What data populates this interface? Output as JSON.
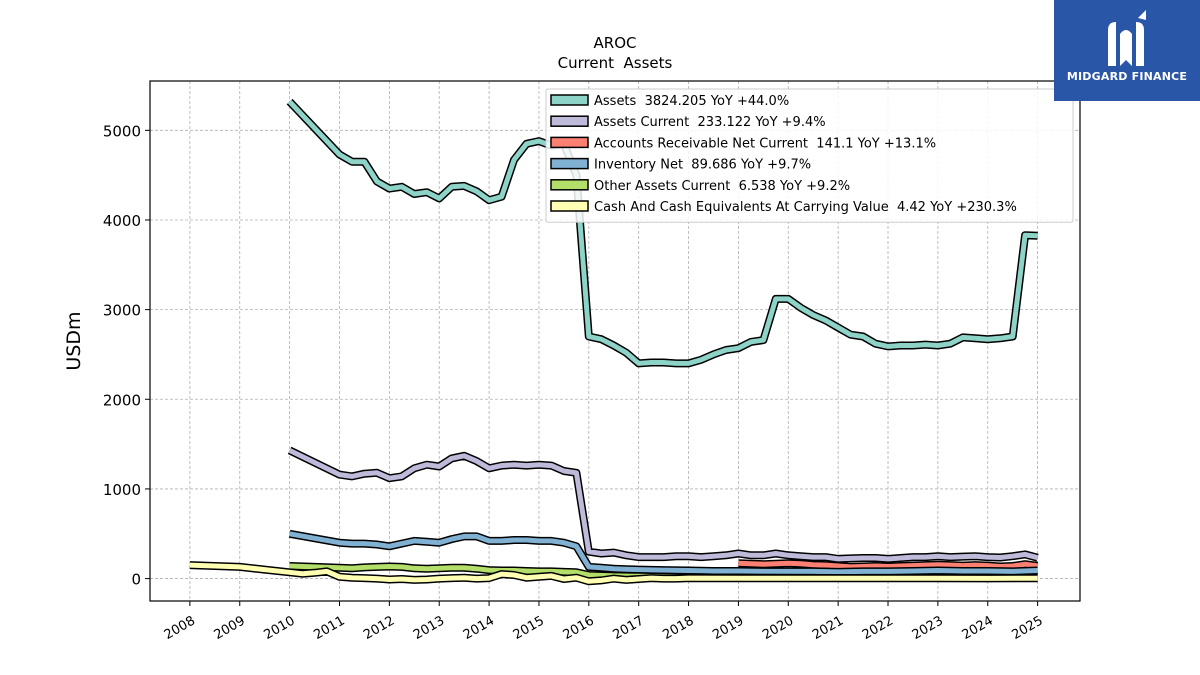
{
  "brand": {
    "name": "MIDGARD FINANCE",
    "bg_color": "#2a56a8"
  },
  "chart_data": {
    "type": "line",
    "title": "AROC",
    "subtitle": "Current  Assets",
    "xlabel": "",
    "ylabel": "USDm",
    "ylim": [
      -250,
      5550
    ],
    "xlim": [
      2007.2,
      2025.85
    ],
    "yticks": [
      0,
      1000,
      2000,
      3000,
      4000,
      5000
    ],
    "xticks": [
      2008,
      2009,
      2010,
      2011,
      2012,
      2013,
      2014,
      2015,
      2016,
      2017,
      2018,
      2019,
      2020,
      2021,
      2022,
      2023,
      2024,
      2025
    ],
    "grid": true,
    "legend_position": "top-right",
    "series": [
      {
        "name": "Assets  3824.205 YoY +44.0%",
        "color": "#8dd3c7",
        "x": [
          2010.0,
          2011.0,
          2011.25,
          2011.5,
          2011.75,
          2012.0,
          2012.25,
          2012.5,
          2012.75,
          2013.0,
          2013.25,
          2013.5,
          2013.75,
          2014.0,
          2014.25,
          2014.5,
          2014.75,
          2015.0,
          2015.25,
          2015.5,
          2015.75,
          2016.0,
          2016.25,
          2016.5,
          2016.75,
          2017.0,
          2017.25,
          2017.5,
          2017.75,
          2018.0,
          2018.25,
          2018.5,
          2018.75,
          2019.0,
          2019.25,
          2019.5,
          2019.75,
          2020.0,
          2020.25,
          2020.5,
          2020.75,
          2021.0,
          2021.25,
          2021.5,
          2021.75,
          2022.0,
          2022.25,
          2022.5,
          2022.75,
          2023.0,
          2023.25,
          2023.5,
          2023.75,
          2024.0,
          2024.25,
          2024.5,
          2024.75,
          2025.0
        ],
        "values": [
          5320,
          4730,
          4650,
          4650,
          4430,
          4350,
          4370,
          4290,
          4310,
          4240,
          4370,
          4380,
          4320,
          4220,
          4260,
          4670,
          4850,
          4880,
          4830,
          4850,
          4500,
          2700,
          2670,
          2600,
          2520,
          2400,
          2410,
          2410,
          2400,
          2400,
          2440,
          2500,
          2550,
          2570,
          2640,
          2660,
          3120,
          3120,
          3020,
          2940,
          2880,
          2800,
          2720,
          2700,
          2620,
          2590,
          2600,
          2600,
          2610,
          2600,
          2620,
          2690,
          2680,
          2670,
          2680,
          2700,
          3830,
          3824
        ]
      },
      {
        "name": "Assets Current  233.122 YoY +9.4%",
        "color": "#bebada",
        "x": [
          2010.0,
          2011.0,
          2011.25,
          2011.5,
          2011.75,
          2012.0,
          2012.25,
          2012.5,
          2012.75,
          2013.0,
          2013.25,
          2013.5,
          2013.75,
          2014.0,
          2014.25,
          2014.5,
          2014.75,
          2015.0,
          2015.25,
          2015.5,
          2015.75,
          2016.0,
          2016.25,
          2016.5,
          2016.75,
          2017.0,
          2017.25,
          2017.5,
          2017.75,
          2018.0,
          2018.25,
          2018.5,
          2018.75,
          2019.0,
          2019.25,
          2019.5,
          2019.75,
          2020.0,
          2020.25,
          2020.5,
          2020.75,
          2021.0,
          2021.25,
          2021.5,
          2021.75,
          2022.0,
          2022.25,
          2022.5,
          2022.75,
          2023.0,
          2023.25,
          2023.5,
          2023.75,
          2024.0,
          2024.25,
          2024.5,
          2024.75,
          2025.0
        ],
        "values": [
          1430,
          1160,
          1140,
          1170,
          1180,
          1120,
          1140,
          1230,
          1270,
          1250,
          1340,
          1370,
          1310,
          1230,
          1260,
          1270,
          1260,
          1270,
          1260,
          1200,
          1180,
          300,
          280,
          290,
          260,
          240,
          240,
          240,
          250,
          250,
          240,
          250,
          260,
          280,
          260,
          260,
          280,
          260,
          250,
          240,
          240,
          220,
          225,
          230,
          230,
          220,
          230,
          240,
          240,
          250,
          240,
          245,
          250,
          240,
          235,
          250,
          270,
          233
        ]
      },
      {
        "name": "Accounts Receivable Net Current  141.1 YoY +13.1%",
        "color": "#fb8072",
        "x": [
          2019.0,
          2019.25,
          2019.5,
          2019.75,
          2020.0,
          2020.25,
          2020.5,
          2020.75,
          2021.0,
          2021.25,
          2021.5,
          2021.75,
          2022.0,
          2022.25,
          2022.5,
          2022.75,
          2023.0,
          2023.25,
          2023.5,
          2023.75,
          2024.0,
          2024.25,
          2024.5,
          2024.75,
          2025.0
        ],
        "values": [
          170,
          165,
          160,
          165,
          170,
          165,
          155,
          150,
          140,
          130,
          135,
          140,
          135,
          140,
          145,
          150,
          155,
          150,
          145,
          150,
          145,
          135,
          140,
          160,
          141
        ]
      },
      {
        "name": "Inventory Net  89.686 YoY +9.7%",
        "color": "#80b1d3",
        "x": [
          2010.0,
          2011.0,
          2011.25,
          2011.5,
          2011.75,
          2012.0,
          2012.25,
          2012.5,
          2012.75,
          2013.0,
          2013.25,
          2013.5,
          2013.75,
          2014.0,
          2014.25,
          2014.5,
          2014.75,
          2015.0,
          2015.25,
          2015.5,
          2015.75,
          2016.0,
          2016.25,
          2016.5,
          2016.75,
          2017.0,
          2017.5,
          2018.0,
          2018.5,
          2019.0,
          2019.5,
          2020.0,
          2020.5,
          2021.0,
          2021.5,
          2022.0,
          2022.5,
          2023.0,
          2023.5,
          2024.0,
          2024.5,
          2025.0
        ],
        "values": [
          500,
          400,
          390,
          390,
          380,
          360,
          390,
          420,
          410,
          400,
          440,
          470,
          470,
          420,
          420,
          430,
          430,
          420,
          420,
          400,
          360,
          130,
          120,
          110,
          105,
          100,
          95,
          90,
          85,
          85,
          80,
          80,
          80,
          75,
          80,
          80,
          85,
          90,
          85,
          85,
          80,
          90
        ]
      },
      {
        "name": "Other Assets Current  6.538 YoY +9.2%",
        "color": "#b3de69",
        "x": [
          2010.0,
          2011.0,
          2011.25,
          2011.5,
          2011.75,
          2012.0,
          2012.25,
          2012.5,
          2012.75,
          2013.0,
          2013.25,
          2013.5,
          2013.75,
          2014.0,
          2014.25,
          2014.5,
          2014.75,
          2015.0,
          2015.25,
          2015.5,
          2015.75,
          2016.0,
          2016.5,
          2017.0,
          2018.0,
          2019.0,
          2020.0,
          2021.0,
          2022.0,
          2023.0,
          2024.0,
          2025.0
        ],
        "values": [
          140,
          120,
          115,
          125,
          130,
          135,
          130,
          115,
          110,
          115,
          120,
          120,
          110,
          95,
          90,
          90,
          85,
          80,
          80,
          75,
          70,
          40,
          30,
          25,
          15,
          10,
          8,
          6,
          6,
          6,
          6,
          6.5
        ]
      },
      {
        "name": "Cash And Cash Equivalents At Carrying Value  4.42 YoY +230.3%",
        "color": "#ffffb3",
        "x": [
          2008.0,
          2009.0,
          2009.5,
          2010.0,
          2010.25,
          2010.5,
          2010.75,
          2011.0,
          2011.25,
          2011.5,
          2011.75,
          2012.0,
          2012.25,
          2012.5,
          2012.75,
          2013.0,
          2013.25,
          2013.5,
          2013.75,
          2014.0,
          2014.25,
          2014.5,
          2014.75,
          2015.0,
          2015.25,
          2015.5,
          2015.75,
          2016.0,
          2016.25,
          2016.5,
          2016.75,
          2017.0,
          2017.25,
          2017.5,
          2017.75,
          2018.0,
          2019.0,
          2020.0,
          2021.0,
          2022.0,
          2023.0,
          2024.0,
          2025.0
        ],
        "values": [
          150,
          130,
          100,
          70,
          55,
          65,
          80,
          20,
          10,
          5,
          0,
          -10,
          -5,
          -15,
          -10,
          0,
          5,
          10,
          0,
          5,
          50,
          40,
          10,
          20,
          30,
          -5,
          10,
          -30,
          -20,
          0,
          -15,
          -5,
          5,
          0,
          0,
          5,
          3,
          4,
          4,
          3,
          4,
          2,
          4.4
        ]
      }
    ]
  }
}
